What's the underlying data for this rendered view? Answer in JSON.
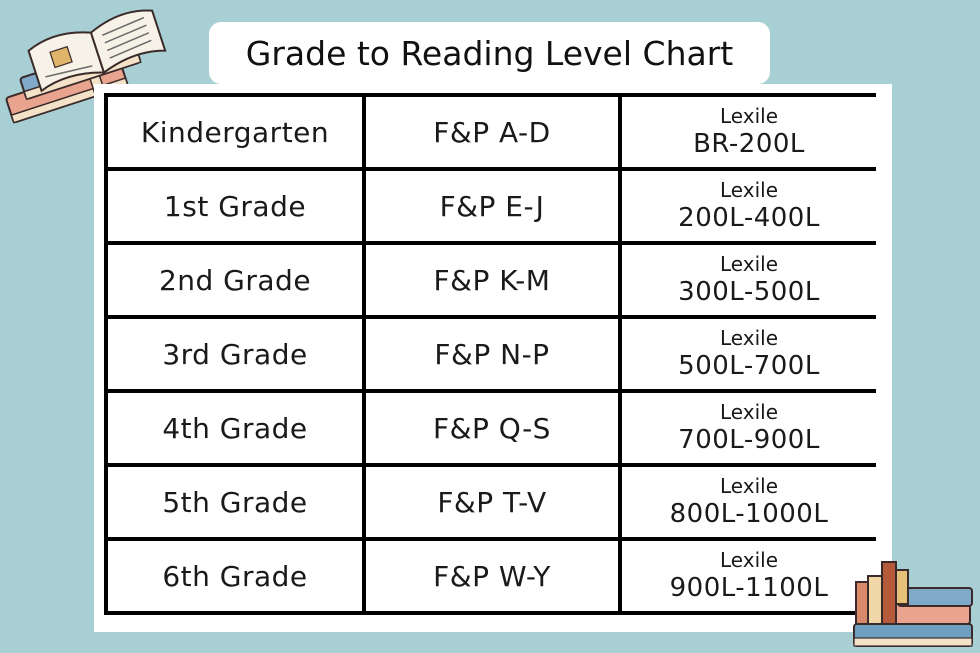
{
  "title": "Grade to Reading Level Chart",
  "rows": [
    {
      "grade": "Kindergarten",
      "fp": "F&P A-D",
      "lexile_label": "Lexile",
      "lexile_range": "BR-200L"
    },
    {
      "grade": "1st Grade",
      "fp": "F&P E-J",
      "lexile_label": "Lexile",
      "lexile_range": "200L-400L"
    },
    {
      "grade": "2nd Grade",
      "fp": "F&P K-M",
      "lexile_label": "Lexile",
      "lexile_range": "300L-500L"
    },
    {
      "grade": "3rd Grade",
      "fp": "F&P N-P",
      "lexile_label": "Lexile",
      "lexile_range": "500L-700L"
    },
    {
      "grade": "4th Grade",
      "fp": "F&P Q-S",
      "lexile_label": "Lexile",
      "lexile_range": "700L-900L"
    },
    {
      "grade": "5th Grade",
      "fp": "F&P T-V",
      "lexile_label": "Lexile",
      "lexile_range": "800L-1000L"
    },
    {
      "grade": "6th Grade",
      "fp": "F&P W-Y",
      "lexile_label": "Lexile",
      "lexile_range": "900L-1100L"
    }
  ],
  "colors": {
    "background": "#a8cfd4",
    "panel": "#ffffff",
    "grid_lines": "#000000"
  },
  "decorations": [
    "open-book-stack-icon",
    "book-stack-icon"
  ]
}
